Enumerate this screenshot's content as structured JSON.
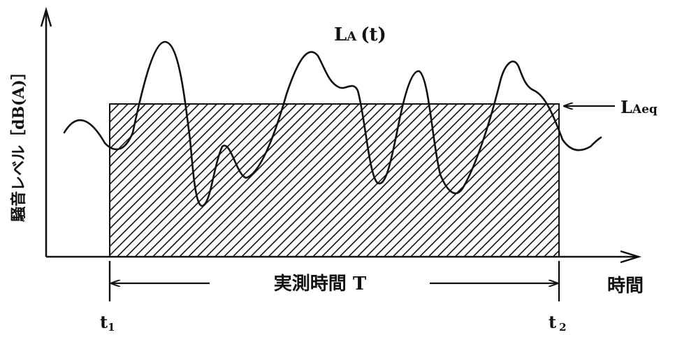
{
  "diagram": {
    "y_axis_label": "騒音レベル［dB(A)］",
    "x_axis_label": "時間",
    "curve_label_main": "L",
    "curve_label_sub": "A",
    "curve_label_arg": "(t)",
    "leq_label_main": "L",
    "leq_label_sub": "Aeq",
    "measurement_label": "実測時間 T",
    "t1_main": "t",
    "t1_sub": "1",
    "t2_main": "t",
    "t2_sub": "2"
  },
  "colors": {
    "ink": "#111111",
    "background": "#ffffff"
  }
}
